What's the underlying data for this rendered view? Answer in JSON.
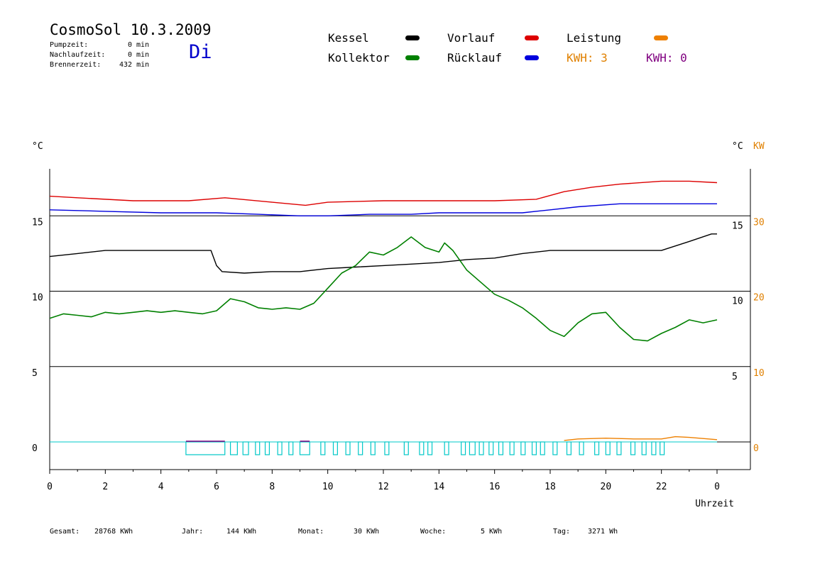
{
  "header": {
    "title": "CosmoSol 10.3.2009",
    "day": "Di",
    "pumpzeit_label": "Pumpzeit:",
    "pumpzeit_value": "0 min",
    "nachlaufzeit_label": "Nachlaufzeit:",
    "nachlaufzeit_value": "0 min",
    "brennerzeit_label": "Brennerzeit:",
    "brennerzeit_value": "432 min"
  },
  "legend": {
    "kessel": "Kessel",
    "kollektor": "Kollektor",
    "vorlauf": "Vorlauf",
    "ruecklauf": "Rücklauf",
    "leistung": "Leistung",
    "kwh1": "KWH: 3",
    "kwh2": "KWH: 0",
    "colors": {
      "kessel": "#000000",
      "kollektor": "#008000",
      "vorlauf": "#dd0000",
      "ruecklauf": "#0000dd",
      "leistung": "#ee8000",
      "kwh1": "#e08000",
      "kwh2": "#800080",
      "pump": "#00c8c8"
    }
  },
  "footer": {
    "gesamt_label": "Gesamt:",
    "gesamt_value": "28768 KWh",
    "jahr_label": "Jahr:",
    "jahr_value": "144 KWh",
    "monat_label": "Monat:",
    "monat_value": "30 KWh",
    "woche_label": "Woche:",
    "woche_value": "5 KWh",
    "tag_label": "Tag:",
    "tag_value": "3271 Wh"
  },
  "chart_data": {
    "type": "line",
    "xlabel": "Uhrzeit",
    "xlim": [
      0,
      24
    ],
    "xticks": [
      "0",
      "2",
      "4",
      "6",
      "8",
      "10",
      "12",
      "14",
      "16",
      "18",
      "20",
      "22",
      "0"
    ],
    "ylabel_left": "°C",
    "ylabel_right": "°C",
    "ylabel_right2": "KW",
    "ylim": [
      -1.8,
      18
    ],
    "yticks_left": [
      "0",
      "5",
      "10",
      "15"
    ],
    "yticks_right": [
      "5",
      "10",
      "15"
    ],
    "yticks_right2": [
      "0",
      "10",
      "20",
      "30"
    ],
    "grid": "horizontal",
    "series": [
      {
        "name": "Vorlauf",
        "color": "#dd0000",
        "points": [
          [
            0,
            16.3
          ],
          [
            1,
            16.2
          ],
          [
            3,
            16.0
          ],
          [
            5,
            16.0
          ],
          [
            6.3,
            16.2
          ],
          [
            8,
            15.9
          ],
          [
            9.2,
            15.7
          ],
          [
            10,
            15.9
          ],
          [
            12,
            16.0
          ],
          [
            14,
            16.0
          ],
          [
            16,
            16.0
          ],
          [
            17.5,
            16.1
          ],
          [
            18.5,
            16.6
          ],
          [
            19.5,
            16.9
          ],
          [
            20.5,
            17.1
          ],
          [
            22,
            17.3
          ],
          [
            23,
            17.3
          ],
          [
            24,
            17.2
          ]
        ]
      },
      {
        "name": "Rücklauf",
        "color": "#0000dd",
        "points": [
          [
            0,
            15.4
          ],
          [
            2,
            15.3
          ],
          [
            4,
            15.2
          ],
          [
            6,
            15.2
          ],
          [
            7.5,
            15.1
          ],
          [
            9,
            15.0
          ],
          [
            10,
            15.0
          ],
          [
            11.5,
            15.1
          ],
          [
            13,
            15.1
          ],
          [
            14,
            15.2
          ],
          [
            15.5,
            15.2
          ],
          [
            17,
            15.2
          ],
          [
            18,
            15.4
          ],
          [
            19,
            15.6
          ],
          [
            20.5,
            15.8
          ],
          [
            22,
            15.8
          ],
          [
            24,
            15.8
          ]
        ]
      },
      {
        "name": "Kessel",
        "color": "#000000",
        "points": [
          [
            0,
            12.3
          ],
          [
            1,
            12.5
          ],
          [
            2,
            12.7
          ],
          [
            3,
            12.7
          ],
          [
            4,
            12.7
          ],
          [
            5,
            12.7
          ],
          [
            5.8,
            12.7
          ],
          [
            6.0,
            11.7
          ],
          [
            6.2,
            11.3
          ],
          [
            7,
            11.2
          ],
          [
            8,
            11.3
          ],
          [
            9,
            11.3
          ],
          [
            10,
            11.5
          ],
          [
            11,
            11.6
          ],
          [
            12,
            11.7
          ],
          [
            13,
            11.8
          ],
          [
            14,
            11.9
          ],
          [
            15,
            12.1
          ],
          [
            16,
            12.2
          ],
          [
            17,
            12.5
          ],
          [
            18,
            12.7
          ],
          [
            20,
            12.7
          ],
          [
            22,
            12.7
          ],
          [
            23,
            13.3
          ],
          [
            23.8,
            13.8
          ],
          [
            24,
            13.8
          ]
        ]
      },
      {
        "name": "Kollektor",
        "color": "#008000",
        "points": [
          [
            0,
            8.2
          ],
          [
            0.5,
            8.5
          ],
          [
            1,
            8.4
          ],
          [
            1.5,
            8.3
          ],
          [
            2,
            8.6
          ],
          [
            2.5,
            8.5
          ],
          [
            3,
            8.6
          ],
          [
            3.5,
            8.7
          ],
          [
            4,
            8.6
          ],
          [
            4.5,
            8.7
          ],
          [
            5,
            8.6
          ],
          [
            5.5,
            8.5
          ],
          [
            6,
            8.7
          ],
          [
            6.5,
            9.5
          ],
          [
            7,
            9.3
          ],
          [
            7.5,
            8.9
          ],
          [
            8,
            8.8
          ],
          [
            8.5,
            8.9
          ],
          [
            9,
            8.8
          ],
          [
            9.5,
            9.2
          ],
          [
            10,
            10.2
          ],
          [
            10.5,
            11.2
          ],
          [
            11,
            11.7
          ],
          [
            11.5,
            12.6
          ],
          [
            12,
            12.4
          ],
          [
            12.5,
            12.9
          ],
          [
            13,
            13.6
          ],
          [
            13.5,
            12.9
          ],
          [
            14,
            12.6
          ],
          [
            14.2,
            13.2
          ],
          [
            14.5,
            12.7
          ],
          [
            15,
            11.4
          ],
          [
            15.5,
            10.6
          ],
          [
            16,
            9.8
          ],
          [
            16.5,
            9.4
          ],
          [
            17,
            8.9
          ],
          [
            17.5,
            8.2
          ],
          [
            18,
            7.4
          ],
          [
            18.5,
            7.0
          ],
          [
            19,
            7.9
          ],
          [
            19.5,
            8.5
          ],
          [
            20,
            8.6
          ],
          [
            20.5,
            7.6
          ],
          [
            21,
            6.8
          ],
          [
            21.5,
            6.7
          ],
          [
            22,
            7.2
          ],
          [
            22.5,
            7.6
          ],
          [
            23,
            8.1
          ],
          [
            23.5,
            7.9
          ],
          [
            24,
            8.1
          ]
        ]
      },
      {
        "name": "Leistung",
        "color": "#ee8000",
        "points": [
          [
            18.5,
            0.1
          ],
          [
            19,
            0.2
          ],
          [
            20,
            0.25
          ],
          [
            21,
            0.2
          ],
          [
            22,
            0.2
          ],
          [
            22.5,
            0.35
          ],
          [
            23,
            0.3
          ],
          [
            24,
            0.15
          ]
        ]
      }
    ],
    "pump_pulses": [
      [
        4.9,
        6.3
      ],
      [
        6.5,
        6.75
      ],
      [
        6.95,
        7.15
      ],
      [
        7.4,
        7.55
      ],
      [
        7.75,
        7.9
      ],
      [
        8.2,
        8.35
      ],
      [
        8.6,
        8.75
      ],
      [
        9.0,
        9.35
      ],
      [
        9.75,
        9.9
      ],
      [
        10.2,
        10.35
      ],
      [
        10.65,
        10.8
      ],
      [
        11.1,
        11.25
      ],
      [
        11.55,
        11.7
      ],
      [
        12.05,
        12.2
      ],
      [
        12.75,
        12.9
      ],
      [
        13.3,
        13.45
      ],
      [
        13.6,
        13.75
      ],
      [
        14.2,
        14.35
      ],
      [
        14.8,
        14.95
      ],
      [
        15.1,
        15.3
      ],
      [
        15.45,
        15.6
      ],
      [
        15.8,
        15.95
      ],
      [
        16.15,
        16.3
      ],
      [
        16.55,
        16.7
      ],
      [
        16.95,
        17.1
      ],
      [
        17.35,
        17.5
      ],
      [
        17.65,
        17.8
      ],
      [
        18.1,
        18.25
      ],
      [
        18.6,
        18.75
      ],
      [
        19.05,
        19.2
      ],
      [
        19.6,
        19.75
      ],
      [
        20.0,
        20.15
      ],
      [
        20.4,
        20.55
      ],
      [
        20.9,
        21.05
      ],
      [
        21.3,
        21.45
      ],
      [
        21.65,
        21.8
      ],
      [
        21.95,
        22.1
      ]
    ]
  }
}
